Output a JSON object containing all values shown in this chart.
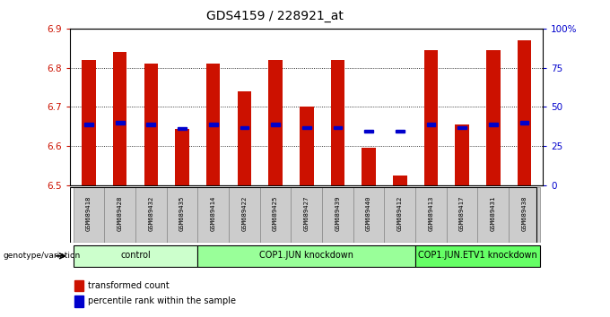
{
  "title": "GDS4159 / 228921_at",
  "samples": [
    "GSM689418",
    "GSM689428",
    "GSM689432",
    "GSM689435",
    "GSM689414",
    "GSM689422",
    "GSM689425",
    "GSM689427",
    "GSM689439",
    "GSM689440",
    "GSM689412",
    "GSM689413",
    "GSM689417",
    "GSM689431",
    "GSM689438"
  ],
  "bar_values": [
    6.82,
    6.84,
    6.81,
    6.645,
    6.81,
    6.74,
    6.82,
    6.7,
    6.82,
    6.595,
    6.525,
    6.845,
    6.655,
    6.845,
    6.87
  ],
  "percentile_values": [
    6.655,
    6.66,
    6.655,
    6.645,
    6.655,
    6.648,
    6.655,
    6.648,
    6.648,
    6.638,
    6.638,
    6.655,
    6.648,
    6.655,
    6.66
  ],
  "groups": [
    {
      "label": "control",
      "start": 0,
      "end": 4,
      "color": "#ccffcc"
    },
    {
      "label": "COP1.JUN knockdown",
      "start": 4,
      "end": 11,
      "color": "#99ff99"
    },
    {
      "label": "COP1.JUN.ETV1 knockdown",
      "start": 11,
      "end": 15,
      "color": "#66ff66"
    }
  ],
  "bar_color": "#cc1100",
  "percentile_color": "#0000cc",
  "bar_bottom": 6.5,
  "ylim_min": 6.5,
  "ylim_max": 6.9,
  "yticks": [
    6.5,
    6.6,
    6.7,
    6.8,
    6.9
  ],
  "right_ylabels": [
    "0",
    "25",
    "50",
    "75",
    "100%"
  ],
  "grid_values": [
    6.6,
    6.7,
    6.8
  ],
  "tick_label_color": "#cc1100",
  "right_tick_color": "#0000cc",
  "genotype_label": "genotype/variation",
  "legend_items": [
    {
      "label": "transformed count",
      "color": "#cc1100"
    },
    {
      "label": "percentile rank within the sample",
      "color": "#0000cc"
    }
  ],
  "bg_color": "#ffffff",
  "sample_bg": "#cccccc"
}
